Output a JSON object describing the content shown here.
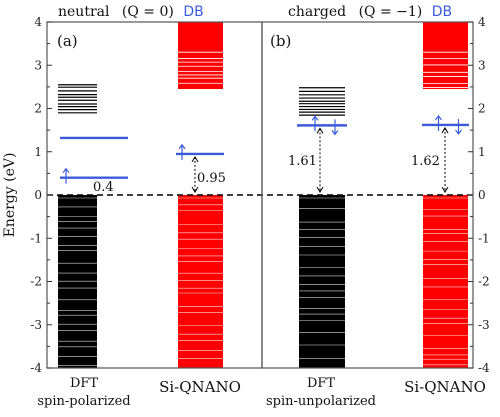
{
  "colors": {
    "dft": "#000000",
    "qnano": "#ff0000",
    "db": "#3b5bdb",
    "frame": "#555555"
  },
  "chart_data": {
    "type": "energy-level-diagram",
    "ylabel": "Energy (eV)",
    "ylim": [
      -4,
      4
    ],
    "yticks": [
      "-4",
      "-3",
      "-2",
      "-1",
      "0",
      "1",
      "2",
      "3",
      "4"
    ],
    "yticks_values": [
      -4,
      -3,
      -2,
      -1,
      0,
      1,
      2,
      3,
      4
    ],
    "fermi_line": 0,
    "panels": [
      {
        "id": "a",
        "label": "(a)",
        "title": "neutral",
        "title_q": "(Q = 0)",
        "db_label": "DB",
        "columns": [
          {
            "name_line1": "DFT",
            "name_line2": "spin-polarized",
            "series": "dft",
            "valence": {
              "from": -4,
              "to": 0,
              "gap_start": -4,
              "gap_end": 0
            },
            "conduction": {
              "from": 1.85,
              "to": 2.55
            },
            "db_levels": [
              {
                "e": 1.32,
                "spin": "none"
              },
              {
                "e": 0.4,
                "spin": "up"
              }
            ],
            "gap_label": "0.4"
          },
          {
            "name_line1": "Si-QNANO",
            "name_line2": "",
            "series": "qnano",
            "valence": {
              "from": -4,
              "to": 0
            },
            "conduction": {
              "from": 2.45,
              "to": 4
            },
            "db_levels": [
              {
                "e": 0.95,
                "spin": "up"
              }
            ],
            "gap_label": "0.95"
          }
        ]
      },
      {
        "id": "b",
        "label": "(b)",
        "title": "charged",
        "title_q": "(Q = −1)",
        "db_label": "DB",
        "columns": [
          {
            "name_line1": "DFT",
            "name_line2": "spin-unpolarized",
            "series": "dft",
            "valence": {
              "from": -4,
              "to": 0
            },
            "conduction": {
              "from": 1.82,
              "to": 2.48
            },
            "db_levels": [
              {
                "e": 1.61,
                "spin": "updown"
              }
            ],
            "gap_label": "1.61"
          },
          {
            "name_line1": "Si-QNANO",
            "name_line2": "",
            "series": "qnano",
            "valence": {
              "from": -4,
              "to": 0
            },
            "conduction": {
              "from": 2.45,
              "to": 4
            },
            "db_levels": [
              {
                "e": 1.62,
                "spin": "updown"
              }
            ],
            "gap_label": "1.62"
          }
        ]
      }
    ]
  }
}
